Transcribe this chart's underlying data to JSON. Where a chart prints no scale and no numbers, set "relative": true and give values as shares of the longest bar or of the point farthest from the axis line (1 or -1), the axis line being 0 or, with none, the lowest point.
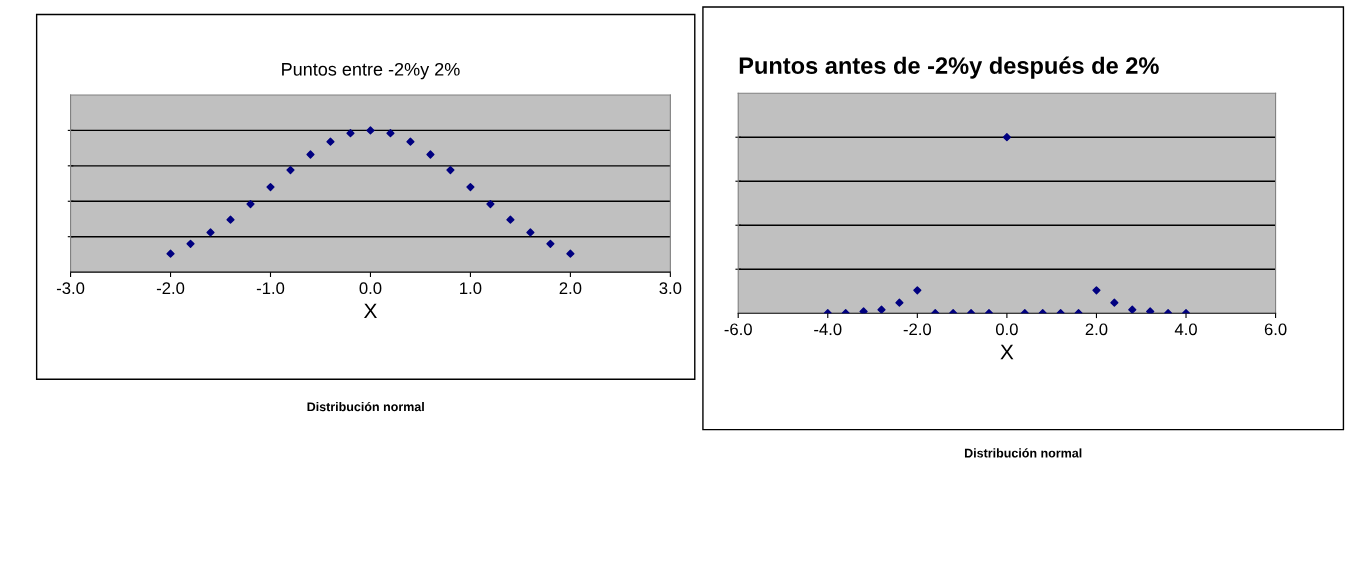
{
  "chart_data": [
    {
      "type": "scatter",
      "title": "Puntos entre -2%y 2%",
      "xlabel": "X",
      "relative": true,
      "color": "#000080",
      "marker": "diamond",
      "grid": "y",
      "xlim": [
        -3.0,
        3.0
      ],
      "xticks": [
        {
          "value": -3,
          "label": "-3.0"
        },
        {
          "value": -2,
          "label": "-2.0"
        },
        {
          "value": -1,
          "label": "-1.0"
        },
        {
          "value": 0,
          "label": "0.0"
        },
        {
          "value": 1,
          "label": "1.0"
        },
        {
          "value": 2,
          "label": "2.0"
        },
        {
          "value": 3,
          "label": "3.0"
        }
      ],
      "x": [
        -2.0,
        -1.8,
        -1.6,
        -1.4,
        -1.2,
        -1.0,
        -0.8,
        -0.6,
        -0.4,
        -0.2,
        0.0,
        0.2,
        0.4,
        0.6,
        0.8,
        1.0,
        1.2,
        1.4,
        1.6,
        1.8,
        2.0
      ],
      "values": [
        0.13,
        0.2,
        0.28,
        0.37,
        0.48,
        0.6,
        0.72,
        0.83,
        0.92,
        0.98,
        1.0,
        0.98,
        0.92,
        0.83,
        0.72,
        0.6,
        0.48,
        0.37,
        0.28,
        0.2,
        0.13
      ],
      "annotations": [
        "Distribución normal"
      ]
    },
    {
      "type": "scatter",
      "title": "Puntos antes de -2%y después de 2%",
      "xlabel": "X",
      "relative": true,
      "color": "#000080",
      "marker": "diamond",
      "grid": "y",
      "xlim": [
        -6.0,
        6.0
      ],
      "xticks": [
        {
          "value": -6,
          "label": "-6.0"
        },
        {
          "value": -4,
          "label": "-4.0"
        },
        {
          "value": -2,
          "label": "-2.0"
        },
        {
          "value": 0,
          "label": "0.0"
        },
        {
          "value": 2,
          "label": "2.0"
        },
        {
          "value": 4,
          "label": "4.0"
        },
        {
          "value": 6,
          "label": "6.0"
        }
      ],
      "x": [
        -4.0,
        -3.6,
        -3.2,
        -2.8,
        -2.4,
        -2.0,
        -1.6,
        -1.2,
        -0.8,
        -0.4,
        0.0,
        0.4,
        0.8,
        1.2,
        1.6,
        2.0,
        2.4,
        2.8,
        3.2,
        3.6,
        4.0
      ],
      "values": [
        0.0,
        0.0,
        0.01,
        0.02,
        0.06,
        0.13,
        0.0,
        0.0,
        0.0,
        0.0,
        1.0,
        0.0,
        0.0,
        0.0,
        0.0,
        0.13,
        0.06,
        0.02,
        0.01,
        0.0,
        0.0
      ],
      "annotations": [
        "Distribución normal"
      ]
    }
  ]
}
